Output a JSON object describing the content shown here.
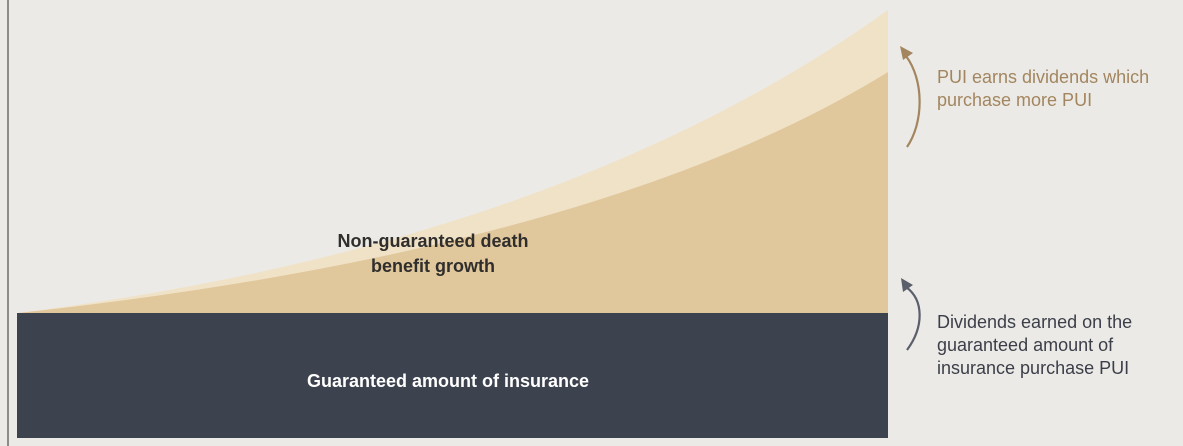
{
  "growth_label": {
    "line1": "Non-guaranteed death",
    "line2": "benefit growth"
  },
  "base_label": "Guaranteed amount of insurance",
  "annotations": {
    "pui_dividends": {
      "line1": "PUI earns dividends which",
      "line2": "purchase more PUI"
    },
    "dividends_guaranteed": {
      "line1": "Dividends earned on the",
      "line2": "guaranteed amount of",
      "line3": "insurance purchase PUI"
    }
  },
  "colors": {
    "background": "#ebeae6",
    "guaranteed_block": "#3c424e",
    "growth_area": "#e1c79c",
    "pui_area": "#f0e2c7",
    "accent_text": "#a3865f",
    "dark_text": "#3c3f49"
  }
}
